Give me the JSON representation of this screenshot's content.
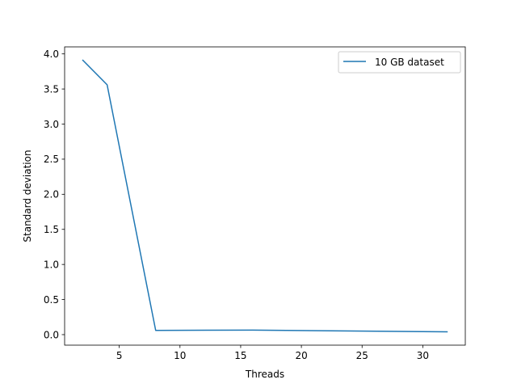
{
  "chart_data": {
    "type": "line",
    "title": "",
    "xlabel": "Threads",
    "ylabel": "Standard deviation",
    "xlim": [
      0.5,
      33.5
    ],
    "ylim": [
      -0.15,
      4.1
    ],
    "xticks": [
      5,
      10,
      15,
      20,
      25,
      30
    ],
    "yticks": [
      0.0,
      0.5,
      1.0,
      1.5,
      2.0,
      2.5,
      3.0,
      3.5,
      4.0
    ],
    "grid": false,
    "legend_position": "top-right",
    "series": [
      {
        "name": "10 GB dataset",
        "color": "#1f77b4",
        "x": [
          2,
          4,
          8,
          16,
          32
        ],
        "y": [
          3.91,
          3.56,
          0.06,
          0.065,
          0.04
        ]
      }
    ]
  }
}
